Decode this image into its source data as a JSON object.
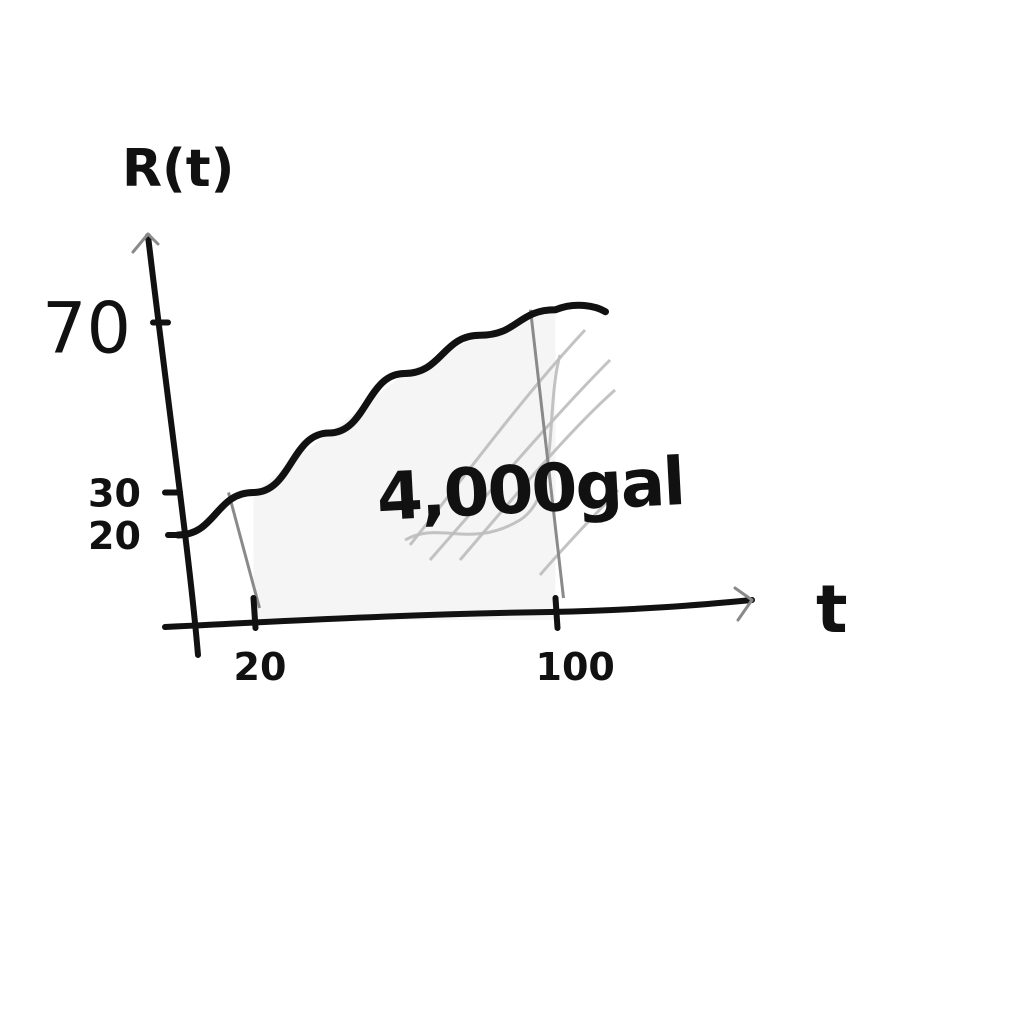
{
  "chart_data": {
    "type": "line",
    "ylabel": "R(t)",
    "xlabel": "t",
    "x_ticks": [
      {
        "value": 20,
        "label": "20"
      },
      {
        "value": 100,
        "label": "100"
      }
    ],
    "y_ticks": [
      {
        "value": 20,
        "label": "20"
      },
      {
        "value": 30,
        "label": "30"
      },
      {
        "value": 70,
        "label": "70"
      }
    ],
    "series": [
      {
        "x": [
          0,
          20,
          40,
          60,
          80,
          100
        ],
        "values": [
          20,
          30,
          44,
          58,
          67,
          73
        ]
      }
    ],
    "shaded_region": {
      "x_start": 20,
      "x_end": 100
    },
    "annotation": "4,000gal",
    "xlim": [
      0,
      110
    ],
    "ylim": [
      0,
      80
    ],
    "grid": false,
    "colors": {
      "ink": "#111111",
      "pencil": "#8a8a8a",
      "shading": "#bdbdbd"
    }
  }
}
